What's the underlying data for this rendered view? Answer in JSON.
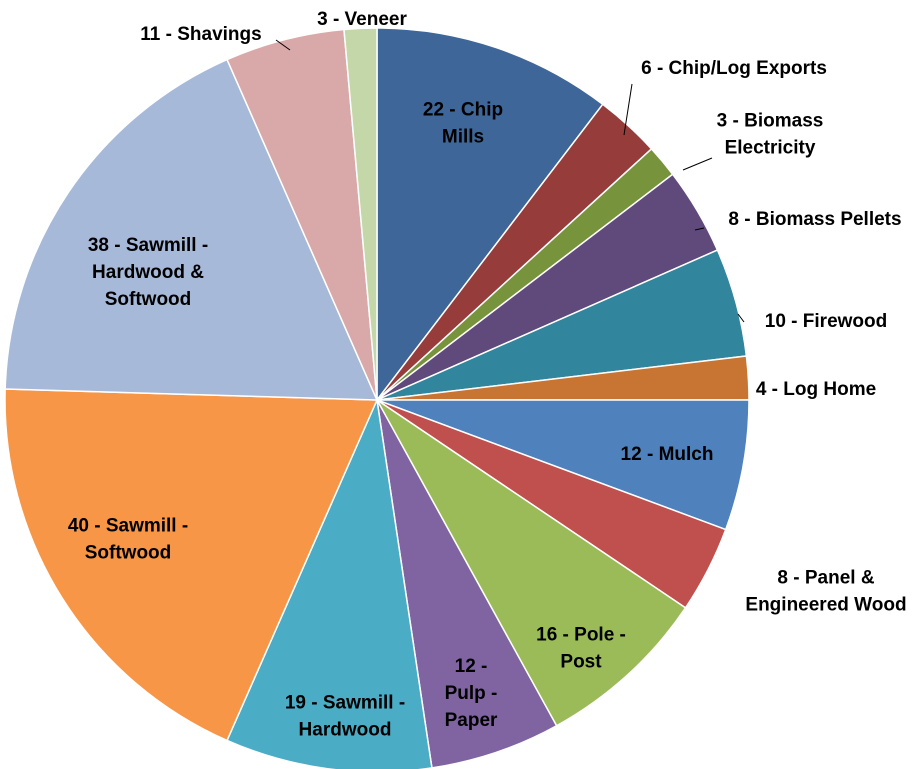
{
  "chart_data": {
    "type": "pie",
    "values": [
      22,
      6,
      3,
      8,
      10,
      4,
      12,
      8,
      16,
      12,
      19,
      40,
      38,
      11,
      3
    ],
    "value_labels": [
      "22 - Chip\nMills",
      "6 - Chip/Log Exports",
      "3 - Biomass\nElectricity",
      "8 - Biomass Pellets",
      "10 - Firewood",
      "4 - Log Home",
      "12 - Mulch",
      "8 - Panel &\nEngineered Wood",
      "16 - Pole -\nPost",
      "12 -\nPulp -\nPaper",
      "19 - Sawmill -\nHardwood",
      "40 - Sawmill -\nSoftwood",
      "38 - Sawmill -\nHardwood &\nSoftwood",
      "11 - Shavings",
      "3 - Veneer"
    ],
    "colors": [
      "#3e6698",
      "#963c3b",
      "#77933c",
      "#604a7b",
      "#31859c",
      "#c87533",
      "#4f81bd",
      "#c0504d",
      "#9bbb59",
      "#8064a2",
      "#4bacc6",
      "#f79646",
      "#a7b9d8",
      "#d9a8a8",
      "#c4d7a8"
    ]
  }
}
